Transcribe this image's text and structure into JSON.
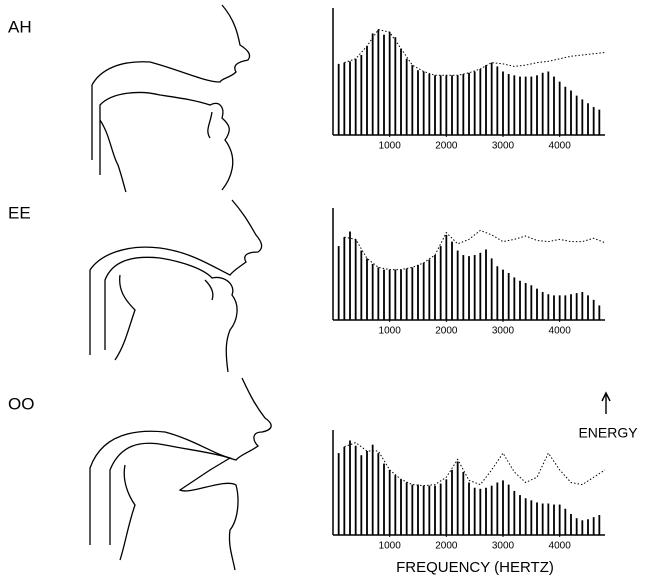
{
  "chart_data": [
    {
      "type": "bar",
      "title": "AH",
      "xlim": [
        0,
        4800
      ],
      "ylim": [
        0,
        100
      ],
      "xticks": [
        1000,
        2000,
        3000,
        4000
      ],
      "series": [
        {
          "type": "bar",
          "color": "#000000",
          "x": [
            100,
            200,
            300,
            400,
            500,
            600,
            700,
            800,
            900,
            1000,
            1100,
            1200,
            1300,
            1400,
            1500,
            1600,
            1700,
            1800,
            1900,
            2000,
            2100,
            2200,
            2300,
            2400,
            2500,
            2600,
            2700,
            2800,
            2900,
            3000,
            3100,
            3200,
            3300,
            3400,
            3500,
            3600,
            3700,
            3800,
            3900,
            4000,
            4100,
            4200,
            4300,
            4400,
            4500,
            4600,
            4700
          ],
          "values": [
            56,
            57,
            58,
            60,
            63,
            70,
            80,
            83,
            79,
            81,
            77,
            68,
            60,
            55,
            51,
            50,
            48,
            47,
            47,
            47,
            47,
            47,
            48,
            49,
            50,
            52,
            55,
            57,
            54,
            50,
            48,
            47,
            46,
            46,
            46,
            47,
            49,
            50,
            46,
            42,
            38,
            35,
            31,
            28,
            25,
            22,
            20
          ]
        },
        {
          "type": "line",
          "color": "#000000",
          "x": [
            200,
            400,
            600,
            800,
            1000,
            1200,
            1400,
            1600,
            1800,
            2000,
            2200,
            2400,
            2600,
            2800,
            3000,
            3200,
            3400,
            3600,
            3800,
            4000,
            4200,
            4400,
            4600,
            4800
          ],
          "values": [
            57,
            60,
            70,
            83,
            81,
            68,
            55,
            50,
            47,
            47,
            47,
            49,
            52,
            57,
            56,
            54,
            55,
            57,
            58,
            60,
            62,
            63,
            64,
            65
          ]
        }
      ]
    },
    {
      "type": "bar",
      "title": "EE",
      "xlim": [
        0,
        4800
      ],
      "ylim": [
        0,
        100
      ],
      "xticks": [
        1000,
        2000,
        3000,
        4000
      ],
      "series": [
        {
          "type": "bar",
          "color": "#000000",
          "x": [
            100,
            200,
            300,
            400,
            500,
            600,
            700,
            800,
            900,
            1000,
            1100,
            1200,
            1300,
            1400,
            1500,
            1600,
            1700,
            1800,
            1900,
            2000,
            2100,
            2200,
            2300,
            2400,
            2500,
            2600,
            2700,
            2800,
            2900,
            3000,
            3100,
            3200,
            3300,
            3400,
            3500,
            3600,
            3700,
            3800,
            3900,
            4000,
            4100,
            4200,
            4300,
            4400,
            4500,
            4600,
            4700
          ],
          "values": [
            66,
            74,
            79,
            72,
            62,
            55,
            50,
            47,
            45,
            45,
            45,
            45,
            46,
            47,
            49,
            51,
            54,
            58,
            66,
            76,
            70,
            62,
            58,
            57,
            58,
            60,
            63,
            55,
            48,
            45,
            42,
            38,
            35,
            33,
            31,
            28,
            25,
            23,
            22,
            22,
            22,
            23,
            24,
            25,
            22,
            18,
            13
          ]
        },
        {
          "type": "line",
          "color": "#000000",
          "x": [
            200,
            400,
            600,
            800,
            1000,
            1200,
            1400,
            1600,
            1800,
            2000,
            2200,
            2400,
            2600,
            2800,
            3000,
            3200,
            3400,
            3600,
            3800,
            4000,
            4200,
            4400,
            4600,
            4800
          ],
          "values": [
            74,
            72,
            55,
            47,
            45,
            45,
            47,
            51,
            58,
            78,
            68,
            72,
            80,
            76,
            70,
            72,
            75,
            71,
            70,
            72,
            70,
            70,
            73,
            69
          ]
        }
      ]
    },
    {
      "type": "bar",
      "title": "OO",
      "xlim": [
        0,
        4800
      ],
      "ylim": [
        0,
        100
      ],
      "xticks": [
        1000,
        2000,
        3000,
        4000
      ],
      "x_label": "FREQUENCY (HERTZ)",
      "y_label": "ENERGY",
      "series": [
        {
          "type": "bar",
          "color": "#000000",
          "x": [
            100,
            200,
            300,
            400,
            500,
            600,
            700,
            800,
            900,
            1000,
            1100,
            1200,
            1300,
            1400,
            1500,
            1600,
            1700,
            1800,
            1900,
            2000,
            2100,
            2200,
            2300,
            2400,
            2500,
            2600,
            2700,
            2800,
            2900,
            3000,
            3100,
            3200,
            3300,
            3400,
            3500,
            3600,
            3700,
            3800,
            3900,
            4000,
            4100,
            4200,
            4300,
            4400,
            4500,
            4600,
            4700
          ],
          "values": [
            78,
            84,
            90,
            85,
            76,
            80,
            86,
            78,
            68,
            62,
            57,
            53,
            50,
            48,
            48,
            47,
            47,
            47,
            49,
            53,
            62,
            70,
            60,
            50,
            45,
            44,
            45,
            47,
            50,
            52,
            48,
            42,
            38,
            35,
            33,
            31,
            30,
            30,
            29,
            29,
            25,
            20,
            16,
            14,
            15,
            17,
            19
          ]
        },
        {
          "type": "line",
          "color": "#000000",
          "x": [
            200,
            400,
            600,
            800,
            1000,
            1200,
            1400,
            1600,
            1800,
            2000,
            2200,
            2400,
            2600,
            2800,
            3000,
            3200,
            3400,
            3600,
            3800,
            4000,
            4200,
            4400,
            4600,
            4800
          ],
          "values": [
            84,
            88,
            80,
            80,
            62,
            53,
            48,
            47,
            48,
            55,
            72,
            52,
            48,
            62,
            78,
            60,
            50,
            55,
            78,
            62,
            50,
            48,
            55,
            62
          ]
        }
      ]
    }
  ]
}
